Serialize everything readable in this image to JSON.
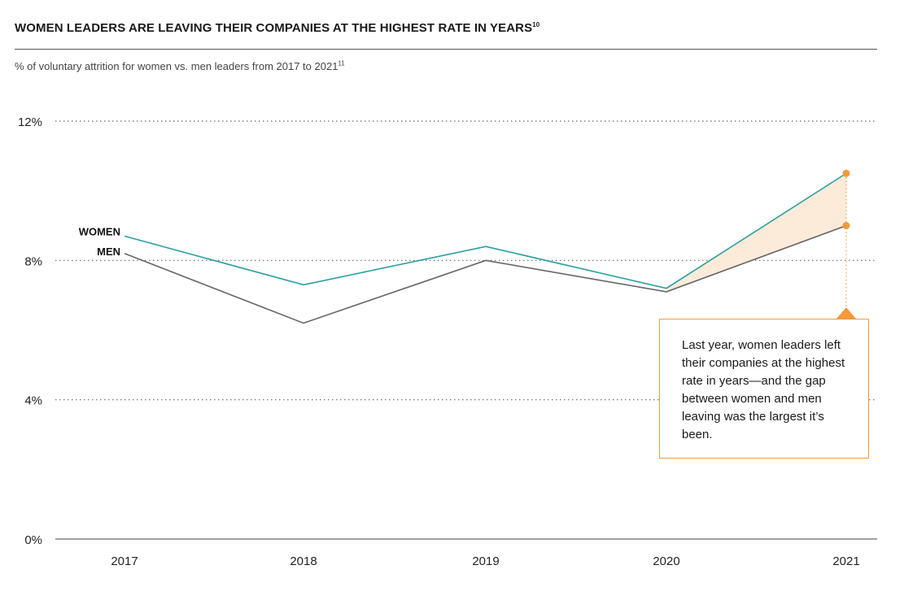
{
  "header": {
    "title": "WOMEN LEADERS ARE LEAVING THEIR COMPANIES AT THE HIGHEST RATE IN YEARS",
    "title_footnote": "10",
    "subtitle": "% of voluntary attrition for women vs. men leaders from 2017 to 2021",
    "subtitle_footnote": "11"
  },
  "callout": {
    "text": "Last year, women leaders left their companies at the highest rate in years—and the gap between women and men leaving was the largest it’s been."
  },
  "colors": {
    "women": "#2a9fa3",
    "men": "#666666",
    "accent": "#f39a3a",
    "gap_fill": "#fdebd9",
    "grid": "#666666"
  },
  "chart_data": {
    "type": "line",
    "title": "WOMEN LEADERS ARE LEAVING THEIR COMPANIES AT THE HIGHEST RATE IN YEARS",
    "subtitle": "% of voluntary attrition for women vs. men leaders from 2017 to 2021",
    "categories": [
      "2017",
      "2018",
      "2019",
      "2020",
      "2021"
    ],
    "series": [
      {
        "name": "WOMEN",
        "values": [
          8.7,
          7.3,
          8.4,
          7.2,
          10.5
        ]
      },
      {
        "name": "MEN",
        "values": [
          8.2,
          6.2,
          8.0,
          7.1,
          9.0
        ]
      }
    ],
    "ylim": [
      0,
      12
    ],
    "yticks": [
      0,
      4,
      8,
      12
    ],
    "ytick_labels": [
      "0%",
      "4%",
      "8%",
      "12%"
    ],
    "grid": "dotted horizontal",
    "legend": "inline labels at left of lines",
    "highlight": "gap between series shaded for 2020–2021"
  }
}
